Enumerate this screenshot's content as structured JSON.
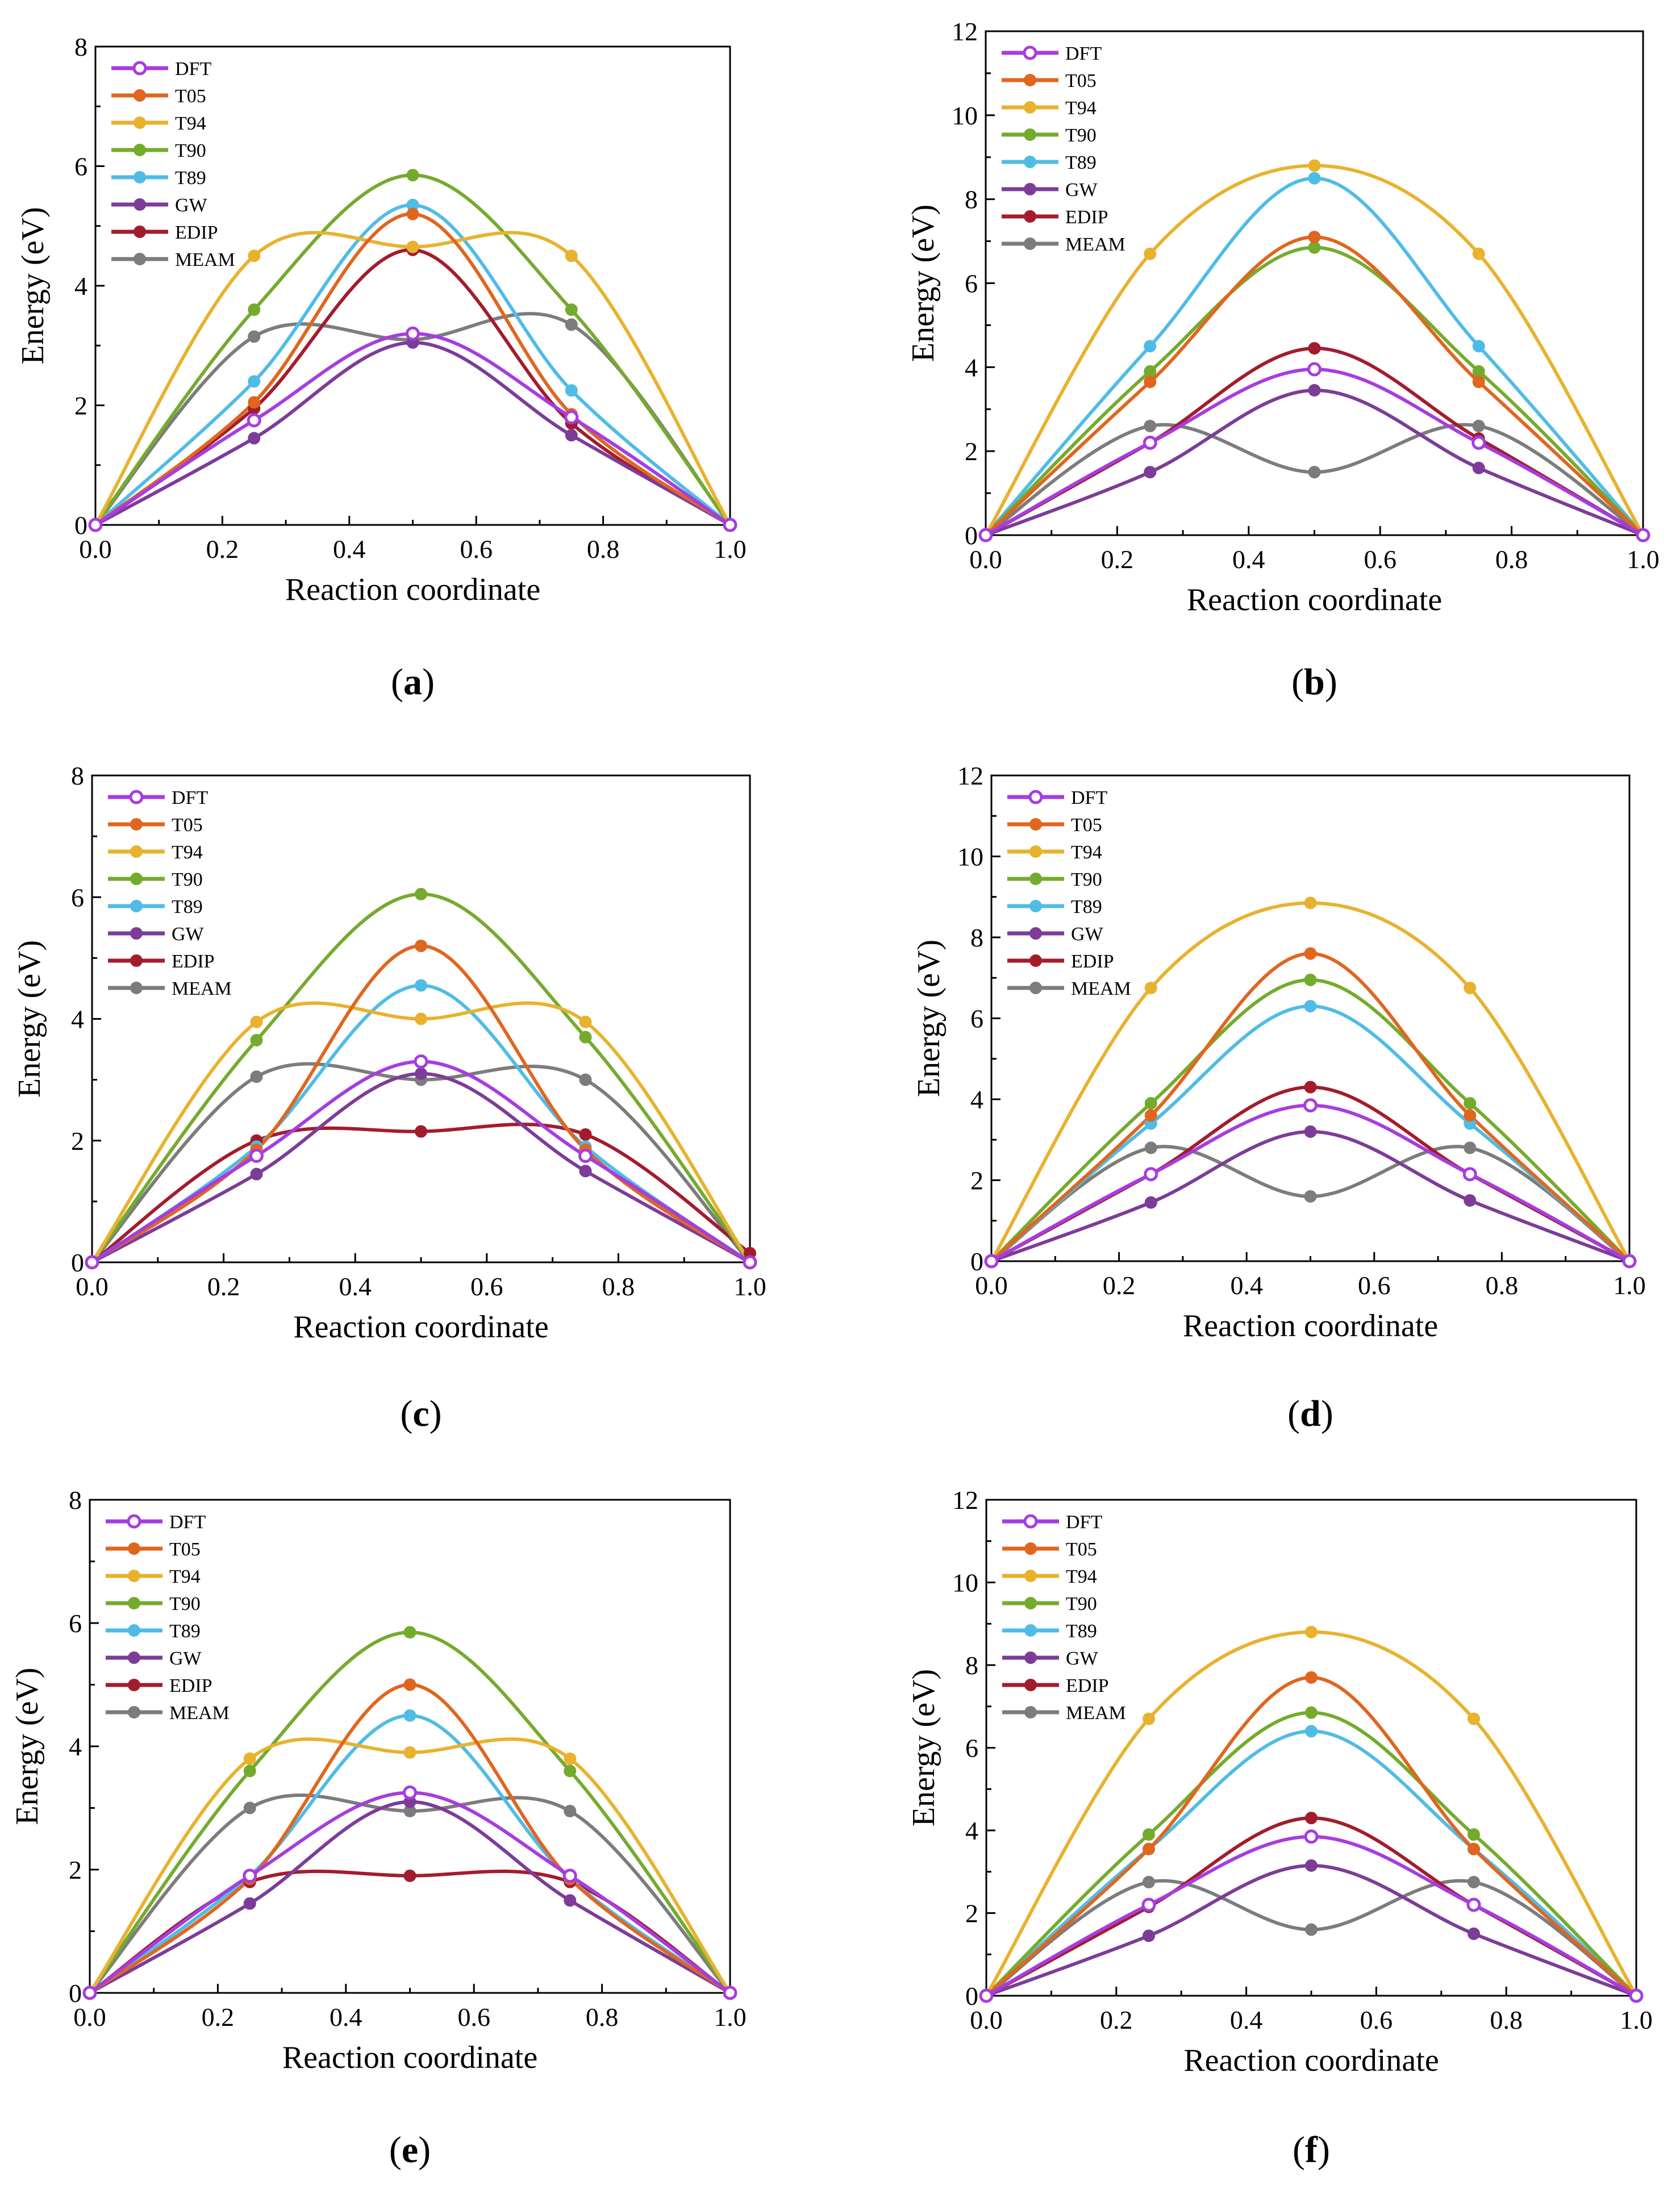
{
  "figure": {
    "series_styles": [
      {
        "name": "DFT",
        "color": "#a63de0",
        "open_marker": true
      },
      {
        "name": "T05",
        "color": "#e0661f",
        "open_marker": false
      },
      {
        "name": "T94",
        "color": "#e8b22e",
        "open_marker": false
      },
      {
        "name": "T90",
        "color": "#74ab2e",
        "open_marker": false
      },
      {
        "name": "T89",
        "color": "#4fbce6",
        "open_marker": false
      },
      {
        "name": "GW",
        "color": "#7d3c98",
        "open_marker": false
      },
      {
        "name": "EDIP",
        "color": "#a31c2e",
        "open_marker": false
      },
      {
        "name": "MEAM",
        "color": "#7c7c7c",
        "open_marker": false
      }
    ]
  },
  "chart_data": [
    {
      "type": "line",
      "panel": "a",
      "caption_open": "(",
      "caption_letter": "a",
      "caption_close": ")",
      "xlabel": "Reaction coordinate",
      "ylabel": "Energy (eV)",
      "xlim": [
        0,
        1
      ],
      "ylim": [
        0,
        8
      ],
      "xticks": [
        "0.0",
        "0.2",
        "0.4",
        "0.6",
        "0.8",
        "1.0"
      ],
      "yticks": [
        "0",
        "2",
        "4",
        "6",
        "8"
      ],
      "x": [
        0,
        0.25,
        0.5,
        0.75,
        1.0
      ],
      "series": [
        {
          "name": "DFT",
          "values": [
            0,
            1.75,
            3.2,
            1.8,
            0
          ]
        },
        {
          "name": "T05",
          "values": [
            0,
            2.05,
            5.2,
            1.85,
            0
          ]
        },
        {
          "name": "T94",
          "values": [
            0,
            4.5,
            4.65,
            4.5,
            0
          ]
        },
        {
          "name": "T90",
          "values": [
            0,
            3.6,
            5.85,
            3.6,
            0
          ]
        },
        {
          "name": "T89",
          "values": [
            0,
            2.4,
            5.35,
            2.25,
            0
          ]
        },
        {
          "name": "GW",
          "values": [
            0,
            1.45,
            3.05,
            1.5,
            0
          ]
        },
        {
          "name": "EDIP",
          "values": [
            0,
            1.95,
            4.6,
            1.7,
            0
          ]
        },
        {
          "name": "MEAM",
          "values": [
            0,
            3.15,
            3.1,
            3.35,
            0
          ]
        }
      ]
    },
    {
      "type": "line",
      "panel": "b",
      "caption_open": "(",
      "caption_letter": "b",
      "caption_close": ")",
      "xlabel": "Reaction coordinate",
      "ylabel": "Energy (eV)",
      "xlim": [
        0,
        1
      ],
      "ylim": [
        0,
        12
      ],
      "xticks": [
        "0.0",
        "0.2",
        "0.4",
        "0.6",
        "0.8",
        "1.0"
      ],
      "yticks": [
        "0",
        "2",
        "4",
        "6",
        "8",
        "10",
        "12"
      ],
      "x": [
        0,
        0.25,
        0.5,
        0.75,
        1.0
      ],
      "series": [
        {
          "name": "DFT",
          "values": [
            0,
            2.2,
            3.95,
            2.2,
            0
          ]
        },
        {
          "name": "T05",
          "values": [
            0,
            3.65,
            7.1,
            3.65,
            0
          ]
        },
        {
          "name": "T94",
          "values": [
            0,
            6.7,
            8.8,
            6.7,
            0
          ]
        },
        {
          "name": "T90",
          "values": [
            0,
            3.9,
            6.85,
            3.9,
            0
          ]
        },
        {
          "name": "T89",
          "values": [
            0,
            4.5,
            8.5,
            4.5,
            0
          ]
        },
        {
          "name": "GW",
          "values": [
            0,
            1.5,
            3.45,
            1.6,
            0
          ]
        },
        {
          "name": "EDIP",
          "values": [
            0,
            2.2,
            4.45,
            2.3,
            0
          ]
        },
        {
          "name": "MEAM",
          "values": [
            0,
            2.6,
            1.5,
            2.6,
            0
          ]
        }
      ]
    },
    {
      "type": "line",
      "panel": "c",
      "caption_open": "(",
      "caption_letter": "c",
      "caption_close": ")",
      "xlabel": "Reaction coordinate",
      "ylabel": "Energy (eV)",
      "xlim": [
        0,
        1
      ],
      "ylim": [
        0,
        8
      ],
      "xticks": [
        "0.0",
        "0.2",
        "0.4",
        "0.6",
        "0.8",
        "1.0"
      ],
      "yticks": [
        "0",
        "2",
        "4",
        "6",
        "8"
      ],
      "x": [
        0,
        0.25,
        0.5,
        0.75,
        1.0
      ],
      "series": [
        {
          "name": "DFT",
          "values": [
            0,
            1.75,
            3.3,
            1.75,
            0
          ]
        },
        {
          "name": "T05",
          "values": [
            0,
            1.85,
            5.2,
            1.85,
            0
          ]
        },
        {
          "name": "T94",
          "values": [
            0,
            3.95,
            4.0,
            3.95,
            0
          ]
        },
        {
          "name": "T90",
          "values": [
            0,
            3.65,
            6.05,
            3.7,
            0
          ]
        },
        {
          "name": "T89",
          "values": [
            0,
            1.9,
            4.55,
            1.9,
            0
          ]
        },
        {
          "name": "GW",
          "values": [
            0,
            1.45,
            3.1,
            1.5,
            0
          ]
        },
        {
          "name": "EDIP",
          "values": [
            0,
            2.0,
            2.15,
            2.1,
            0.15
          ]
        },
        {
          "name": "MEAM",
          "values": [
            0,
            3.05,
            3.0,
            3.0,
            0
          ]
        }
      ]
    },
    {
      "type": "line",
      "panel": "d",
      "caption_open": "(",
      "caption_letter": "d",
      "caption_close": ")",
      "xlabel": "Reaction coordinate",
      "ylabel": "Energy (eV)",
      "xlim": [
        0,
        1
      ],
      "ylim": [
        0,
        12
      ],
      "xticks": [
        "0.0",
        "0.2",
        "0.4",
        "0.6",
        "0.8",
        "1.0"
      ],
      "yticks": [
        "0",
        "2",
        "4",
        "6",
        "8",
        "10",
        "12"
      ],
      "x": [
        0,
        0.25,
        0.5,
        0.75,
        1.0
      ],
      "series": [
        {
          "name": "DFT",
          "values": [
            0,
            2.15,
            3.85,
            2.15,
            0
          ]
        },
        {
          "name": "T05",
          "values": [
            0,
            3.6,
            7.6,
            3.6,
            0
          ]
        },
        {
          "name": "T94",
          "values": [
            0,
            6.75,
            8.85,
            6.75,
            0
          ]
        },
        {
          "name": "T90",
          "values": [
            0,
            3.9,
            6.95,
            3.9,
            0
          ]
        },
        {
          "name": "T89",
          "values": [
            0,
            3.4,
            6.3,
            3.4,
            0
          ]
        },
        {
          "name": "GW",
          "values": [
            0,
            1.45,
            3.2,
            1.5,
            0
          ]
        },
        {
          "name": "EDIP",
          "values": [
            0,
            2.15,
            4.3,
            2.15,
            0
          ]
        },
        {
          "name": "MEAM",
          "values": [
            0,
            2.8,
            1.6,
            2.8,
            0
          ]
        }
      ]
    },
    {
      "type": "line",
      "panel": "e",
      "caption_open": "(",
      "caption_letter": "e",
      "caption_close": ")",
      "xlabel": "Reaction coordinate",
      "ylabel": "Energy (eV)",
      "xlim": [
        0,
        1
      ],
      "ylim": [
        0,
        8
      ],
      "xticks": [
        "0.0",
        "0.2",
        "0.4",
        "0.6",
        "0.8",
        "1.0"
      ],
      "yticks": [
        "0",
        "2",
        "4",
        "6",
        "8"
      ],
      "x": [
        0,
        0.25,
        0.5,
        0.75,
        1.0
      ],
      "series": [
        {
          "name": "DFT",
          "values": [
            0,
            1.9,
            3.25,
            1.9,
            0
          ]
        },
        {
          "name": "T05",
          "values": [
            0,
            1.85,
            5.0,
            1.85,
            0
          ]
        },
        {
          "name": "T94",
          "values": [
            0,
            3.8,
            3.9,
            3.8,
            0
          ]
        },
        {
          "name": "T90",
          "values": [
            0,
            3.6,
            5.85,
            3.6,
            0
          ]
        },
        {
          "name": "T89",
          "values": [
            0,
            1.9,
            4.5,
            1.85,
            0
          ]
        },
        {
          "name": "GW",
          "values": [
            0,
            1.45,
            3.1,
            1.5,
            0
          ]
        },
        {
          "name": "EDIP",
          "values": [
            0,
            1.8,
            1.9,
            1.8,
            0
          ]
        },
        {
          "name": "MEAM",
          "values": [
            0,
            3.0,
            2.95,
            2.95,
            0
          ]
        }
      ]
    },
    {
      "type": "line",
      "panel": "f",
      "caption_open": "(",
      "caption_letter": "f",
      "caption_close": ")",
      "xlabel": "Reaction coordinate",
      "ylabel": "Energy (eV)",
      "xlim": [
        0,
        1
      ],
      "ylim": [
        0,
        12
      ],
      "xticks": [
        "0.0",
        "0.2",
        "0.4",
        "0.6",
        "0.8",
        "1.0"
      ],
      "yticks": [
        "0",
        "2",
        "4",
        "6",
        "8",
        "10",
        "12"
      ],
      "x": [
        0,
        0.25,
        0.5,
        0.75,
        1.0
      ],
      "series": [
        {
          "name": "DFT",
          "values": [
            0,
            2.2,
            3.85,
            2.2,
            0
          ]
        },
        {
          "name": "T05",
          "values": [
            0,
            3.55,
            7.7,
            3.55,
            0
          ]
        },
        {
          "name": "T94",
          "values": [
            0,
            6.7,
            8.8,
            6.7,
            0
          ]
        },
        {
          "name": "T90",
          "values": [
            0,
            3.9,
            6.85,
            3.9,
            0
          ]
        },
        {
          "name": "T89",
          "values": [
            0,
            3.55,
            6.4,
            3.55,
            0
          ]
        },
        {
          "name": "GW",
          "values": [
            0,
            1.45,
            3.15,
            1.5,
            0
          ]
        },
        {
          "name": "EDIP",
          "values": [
            0,
            2.15,
            4.3,
            2.2,
            0
          ]
        },
        {
          "name": "MEAM",
          "values": [
            0,
            2.75,
            1.6,
            2.75,
            0
          ]
        }
      ]
    }
  ]
}
